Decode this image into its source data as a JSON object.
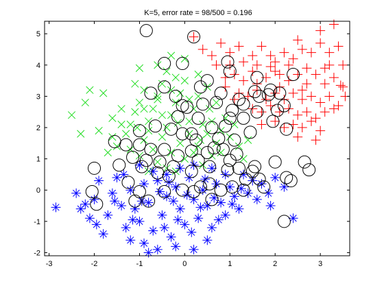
{
  "chart_data": {
    "type": "scatter",
    "title": "K=5, error rate = 98/500 = 0.196",
    "xlim": [
      -3.1,
      3.65
    ],
    "ylim": [
      -2.1,
      5.4
    ],
    "xticks": [
      -3,
      -2,
      -1,
      0,
      1,
      2,
      3
    ],
    "yticks": [
      -2,
      -1,
      0,
      1,
      2,
      3,
      4,
      5
    ],
    "xtick_labels": [
      "-3",
      "-2",
      "-1",
      "0",
      "1",
      "2",
      "3"
    ],
    "ytick_labels": [
      "-2",
      "-1",
      "0",
      "1",
      "2",
      "3",
      "4",
      "5"
    ],
    "grid": false,
    "legend": false,
    "colors": {
      "class_plus": "#ff0000",
      "class_x": "#22dd22",
      "class_star": "#0000ff",
      "misclassified": "#000000",
      "axes": "#000000",
      "background": "#ffffff"
    },
    "series": [
      {
        "marker": "plus",
        "color": "#ff0000",
        "points": [
          [
            0.2,
            4.9
          ],
          [
            0.4,
            4.5
          ],
          [
            0.6,
            4.3
          ],
          [
            0.8,
            4.7
          ],
          [
            1.0,
            4.4
          ],
          [
            1.2,
            4.6
          ],
          [
            1.3,
            4.1
          ],
          [
            1.5,
            4.3
          ],
          [
            1.7,
            4.6
          ],
          [
            1.9,
            4.3
          ],
          [
            2.0,
            4.1
          ],
          [
            2.2,
            4.4
          ],
          [
            2.4,
            4.2
          ],
          [
            2.6,
            4.5
          ],
          [
            2.8,
            4.4
          ],
          [
            3.0,
            4.7
          ],
          [
            3.2,
            4.4
          ],
          [
            3.4,
            4.6
          ],
          [
            3.0,
            5.1
          ],
          [
            3.3,
            5.3
          ],
          [
            2.5,
            4.8
          ],
          [
            1.1,
            3.7
          ],
          [
            1.3,
            3.5
          ],
          [
            1.5,
            3.8
          ],
          [
            1.6,
            3.4
          ],
          [
            1.8,
            3.6
          ],
          [
            2.0,
            3.8
          ],
          [
            2.1,
            3.3
          ],
          [
            2.3,
            3.5
          ],
          [
            2.5,
            3.7
          ],
          [
            2.7,
            3.4
          ],
          [
            2.9,
            3.7
          ],
          [
            3.1,
            3.4
          ],
          [
            3.3,
            3.6
          ],
          [
            3.5,
            3.3
          ],
          [
            3.55,
            3.0
          ],
          [
            1.2,
            3.1
          ],
          [
            1.4,
            3.0
          ],
          [
            1.6,
            3.2
          ],
          [
            1.8,
            2.9
          ],
          [
            2.0,
            3.1
          ],
          [
            2.2,
            2.9
          ],
          [
            2.4,
            3.1
          ],
          [
            2.6,
            2.9
          ],
          [
            2.8,
            3.0
          ],
          [
            3.0,
            2.8
          ],
          [
            3.2,
            3.0
          ],
          [
            3.4,
            2.7
          ],
          [
            1.5,
            2.6
          ],
          [
            1.7,
            2.5
          ],
          [
            1.9,
            2.7
          ],
          [
            2.1,
            2.5
          ],
          [
            2.3,
            2.6
          ],
          [
            2.5,
            2.4
          ],
          [
            2.7,
            2.5
          ],
          [
            2.9,
            2.3
          ],
          [
            3.1,
            2.5
          ],
          [
            3.3,
            2.6
          ],
          [
            2.0,
            2.2
          ],
          [
            2.2,
            2.0
          ],
          [
            2.4,
            2.1
          ],
          [
            2.6,
            2.0
          ],
          [
            2.8,
            2.2
          ],
          [
            3.0,
            1.9
          ],
          [
            2.9,
            1.6
          ],
          [
            2.5,
            1.7
          ],
          [
            1.7,
            2.1
          ],
          [
            0.7,
            4.0
          ],
          [
            0.9,
            3.6
          ],
          [
            1.0,
            4.0
          ],
          [
            0.9,
            3.3
          ],
          [
            2.1,
            3.7
          ],
          [
            2.7,
            3.9
          ],
          [
            3.1,
            3.9
          ],
          [
            3.5,
            4.0
          ],
          [
            2.3,
            4.0
          ],
          [
            1.9,
            3.95
          ],
          [
            1.6,
            4.0
          ],
          [
            2.6,
            3.2
          ],
          [
            1.1,
            2.9
          ],
          [
            3.45,
            3.35
          ],
          [
            3.2,
            4.0
          ]
        ]
      },
      {
        "marker": "x",
        "color": "#22dd22",
        "points": [
          [
            -2.5,
            2.4
          ],
          [
            -2.2,
            2.8
          ],
          [
            -2.1,
            3.2
          ],
          [
            -1.8,
            3.1
          ],
          [
            -2.3,
            1.8
          ],
          [
            -1.9,
            1.9
          ],
          [
            -1.6,
            2.3
          ],
          [
            -1.4,
            2.6
          ],
          [
            -1.5,
            1.4
          ],
          [
            -1.3,
            1.8
          ],
          [
            -1.2,
            2.1
          ],
          [
            -1.1,
            2.5
          ],
          [
            -1.0,
            2.8
          ],
          [
            -0.9,
            3.2
          ],
          [
            -0.8,
            2.2
          ],
          [
            -0.7,
            2.6
          ],
          [
            -0.6,
            3.0
          ],
          [
            -0.5,
            3.4
          ],
          [
            -0.4,
            2.0
          ],
          [
            -0.3,
            2.4
          ],
          [
            -0.2,
            2.8
          ],
          [
            -0.1,
            3.1
          ],
          [
            0.0,
            3.5
          ],
          [
            0.1,
            2.2
          ],
          [
            0.2,
            2.6
          ],
          [
            0.3,
            3.0
          ],
          [
            0.4,
            2.1
          ],
          [
            -0.9,
            1.6
          ],
          [
            -0.7,
            1.3
          ],
          [
            -0.5,
            1.7
          ],
          [
            -0.3,
            1.2
          ],
          [
            -0.1,
            1.5
          ],
          [
            0.1,
            1.8
          ],
          [
            0.3,
            1.4
          ],
          [
            -1.0,
            1.1
          ],
          [
            -1.2,
            1.3
          ],
          [
            -0.6,
            0.9
          ],
          [
            -0.4,
            0.7
          ],
          [
            0.0,
            1.0
          ],
          [
            0.2,
            1.2
          ],
          [
            0.5,
            1.8
          ],
          [
            0.6,
            2.2
          ],
          [
            0.7,
            1.5
          ],
          [
            0.8,
            1.9
          ],
          [
            0.9,
            2.3
          ],
          [
            1.0,
            1.7
          ],
          [
            1.1,
            2.1
          ],
          [
            1.2,
            1.4
          ],
          [
            0.6,
            1.1
          ],
          [
            0.4,
            0.8
          ],
          [
            -0.6,
            4.0
          ],
          [
            -0.4,
            3.8
          ],
          [
            -0.2,
            3.6
          ],
          [
            0.0,
            4.2
          ],
          [
            -1.0,
            3.9
          ],
          [
            -1.1,
            3.4
          ],
          [
            -0.3,
            4.3
          ],
          [
            0.3,
            3.7
          ],
          [
            0.5,
            3.3
          ],
          [
            0.7,
            2.8
          ],
          [
            -0.8,
            1.9
          ],
          [
            -1.4,
            2.1
          ],
          [
            -1.6,
            1.7
          ],
          [
            -0.5,
            2.4
          ],
          [
            -0.9,
            2.6
          ],
          [
            0.1,
            2.9
          ],
          [
            0.8,
            1.2
          ],
          [
            1.3,
            1.0
          ],
          [
            1.4,
            1.6
          ],
          [
            -1.7,
            1.2
          ],
          [
            -0.2,
            0.6
          ],
          [
            -0.8,
            0.6
          ],
          [
            -0.6,
            2.9
          ],
          [
            -0.3,
            3.2
          ],
          [
            -1.05,
            2.0
          ],
          [
            -0.15,
            2.15
          ],
          [
            0.35,
            1.6
          ],
          [
            0.55,
            2.6
          ]
        ]
      },
      {
        "marker": "star",
        "color": "#0000ff",
        "points": [
          [
            -2.85,
            -0.55
          ],
          [
            -2.4,
            -0.1
          ],
          [
            -2.3,
            -0.6
          ],
          [
            -2.1,
            -0.9
          ],
          [
            -2.0,
            -0.3
          ],
          [
            -1.9,
            0.3
          ],
          [
            -1.7,
            -0.8
          ],
          [
            -1.6,
            -0.1
          ],
          [
            -1.5,
            0.4
          ],
          [
            -1.4,
            -0.5
          ],
          [
            -1.3,
            -1.2
          ],
          [
            -1.2,
            0.0
          ],
          [
            -1.1,
            -0.6
          ],
          [
            -1.0,
            -1.0
          ],
          [
            -0.9,
            0.2
          ],
          [
            -0.8,
            -0.4
          ],
          [
            -0.7,
            -1.3
          ],
          [
            -0.6,
            0.3
          ],
          [
            -0.5,
            -0.8
          ],
          [
            -0.4,
            -0.2
          ],
          [
            -0.3,
            -1.5
          ],
          [
            -0.2,
            0.1
          ],
          [
            -0.1,
            -0.6
          ],
          [
            0.0,
            -1.1
          ],
          [
            0.1,
            0.4
          ],
          [
            0.2,
            -0.3
          ],
          [
            0.3,
            -0.9
          ],
          [
            0.4,
            0.0
          ],
          [
            0.5,
            -0.5
          ],
          [
            0.6,
            -1.2
          ],
          [
            0.7,
            0.2
          ],
          [
            0.8,
            -0.4
          ],
          [
            0.9,
            -0.8
          ],
          [
            1.0,
            0.1
          ],
          [
            1.1,
            -0.2
          ],
          [
            1.2,
            -0.6
          ],
          [
            1.3,
            0.5
          ],
          [
            1.4,
            -0.1
          ],
          [
            1.6,
            -0.3
          ],
          [
            1.7,
            0.2
          ],
          [
            1.9,
            -0.5
          ],
          [
            2.0,
            0.4
          ],
          [
            2.2,
            0.1
          ],
          [
            2.4,
            -0.9
          ],
          [
            -1.8,
            -1.4
          ],
          [
            -1.2,
            -1.6
          ],
          [
            -0.9,
            -1.7
          ],
          [
            -0.6,
            -1.9
          ],
          [
            -0.2,
            -1.8
          ],
          [
            0.2,
            -1.9
          ],
          [
            0.5,
            -1.6
          ],
          [
            -0.8,
            -2.0
          ],
          [
            -1.0,
            0.8
          ],
          [
            -0.7,
            0.6
          ],
          [
            -0.4,
            0.5
          ],
          [
            -0.1,
            0.7
          ],
          [
            0.2,
            0.8
          ],
          [
            0.6,
            0.7
          ],
          [
            0.9,
            0.5
          ],
          [
            -1.35,
            0.5
          ],
          [
            -0.55,
            -0.05
          ],
          [
            -0.25,
            -0.35
          ],
          [
            0.35,
            -0.55
          ],
          [
            0.75,
            -0.95
          ],
          [
            1.05,
            -0.45
          ],
          [
            -1.55,
            -0.35
          ],
          [
            -2.2,
            -0.45
          ],
          [
            -1.95,
            -1.1
          ],
          [
            -0.95,
            -0.35
          ],
          [
            -0.45,
            -1.2
          ],
          [
            0.05,
            -0.15
          ],
          [
            0.45,
            0.35
          ],
          [
            1.5,
            0.3
          ],
          [
            1.85,
            -0.1
          ],
          [
            0.15,
            -1.35
          ],
          [
            -0.15,
            -0.95
          ],
          [
            -1.15,
            -0.95
          ],
          [
            -0.35,
            0.25
          ],
          [
            0.65,
            -0.25
          ],
          [
            1.25,
            0.05
          ]
        ]
      }
    ],
    "misclassified_circles": [
      [
        -0.85,
        5.1
      ],
      [
        0.2,
        4.9
      ],
      [
        -0.45,
        4.05
      ],
      [
        -0.05,
        4.05
      ],
      [
        0.95,
        4.1
      ],
      [
        1.0,
        3.8
      ],
      [
        2.4,
        3.7
      ],
      [
        -0.75,
        3.1
      ],
      [
        -0.45,
        3.3
      ],
      [
        -0.2,
        3.0
      ],
      [
        -0.05,
        2.7
      ],
      [
        0.35,
        3.3
      ],
      [
        0.5,
        3.5
      ],
      [
        0.8,
        3.1
      ],
      [
        0.7,
        2.8
      ],
      [
        1.05,
        2.55
      ],
      [
        1.2,
        2.9
      ],
      [
        1.55,
        3.15
      ],
      [
        1.65,
        3.0
      ],
      [
        1.9,
        3.2
      ],
      [
        2.1,
        3.1
      ],
      [
        2.2,
        2.7
      ],
      [
        1.6,
        2.5
      ],
      [
        1.95,
        2.2
      ],
      [
        2.25,
        1.95
      ],
      [
        0.3,
        2.3
      ],
      [
        0.6,
        2.0
      ],
      [
        1.0,
        2.3
      ],
      [
        1.3,
        2.3
      ],
      [
        -1.0,
        1.9
      ],
      [
        -0.05,
        1.8
      ],
      [
        0.25,
        1.6
      ],
      [
        0.75,
        1.65
      ],
      [
        1.1,
        1.6
      ],
      [
        -1.55,
        1.55
      ],
      [
        -1.3,
        1.45
      ],
      [
        -1.0,
        1.45
      ],
      [
        -0.75,
        1.3
      ],
      [
        -0.45,
        1.3
      ],
      [
        -0.15,
        1.1
      ],
      [
        0.15,
        1.25
      ],
      [
        0.5,
        1.2
      ],
      [
        0.85,
        1.3
      ],
      [
        -1.15,
        1.05
      ],
      [
        -0.85,
        0.95
      ],
      [
        -0.55,
        0.9
      ],
      [
        -0.25,
        0.75
      ],
      [
        0.15,
        0.6
      ],
      [
        0.55,
        0.75
      ],
      [
        0.95,
        0.65
      ],
      [
        1.2,
        0.7
      ],
      [
        1.55,
        0.75
      ],
      [
        2.0,
        0.9
      ],
      [
        2.65,
        0.9
      ],
      [
        2.75,
        0.65
      ],
      [
        -2.0,
        0.7
      ],
      [
        -1.45,
        0.8
      ],
      [
        -0.95,
        0.75
      ],
      [
        0.3,
        0.95
      ],
      [
        0.55,
        0.2
      ],
      [
        1.05,
        0.1
      ],
      [
        1.35,
        0.35
      ],
      [
        1.65,
        0.35
      ],
      [
        2.25,
        0.4
      ],
      [
        2.35,
        0.3
      ],
      [
        -2.05,
        -0.05
      ],
      [
        -1.0,
        -0.05
      ],
      [
        -0.45,
        -0.05
      ],
      [
        0.2,
        -0.05
      ],
      [
        0.8,
        0.0
      ],
      [
        1.3,
        0.0
      ],
      [
        -1.95,
        -0.45
      ],
      [
        -1.1,
        -0.35
      ],
      [
        -0.8,
        -0.35
      ],
      [
        0.6,
        -0.3
      ],
      [
        2.2,
        -1.0
      ],
      [
        -0.05,
        0.0
      ],
      [
        1.6,
        3.6
      ],
      [
        0.15,
        1.8
      ],
      [
        0.4,
        2.75
      ],
      [
        1.85,
        3.05
      ],
      [
        -0.3,
        1.95
      ],
      [
        0.9,
        2.05
      ],
      [
        1.45,
        1.85
      ],
      [
        -0.65,
        2.05
      ],
      [
        1.3,
        2.75
      ],
      [
        0.05,
        2.65
      ],
      [
        0.65,
        1.35
      ],
      [
        1.0,
        0.95
      ],
      [
        -0.35,
        0.45
      ],
      [
        1.75,
        0.1
      ],
      [
        -1.25,
        0.25
      ],
      [
        0.35,
        0.1
      ],
      [
        -0.6,
        0.55
      ],
      [
        1.5,
        0.6
      ],
      [
        -0.15,
        2.35
      ],
      [
        2.05,
        2.55
      ],
      [
        1.15,
        1.15
      ]
    ]
  }
}
